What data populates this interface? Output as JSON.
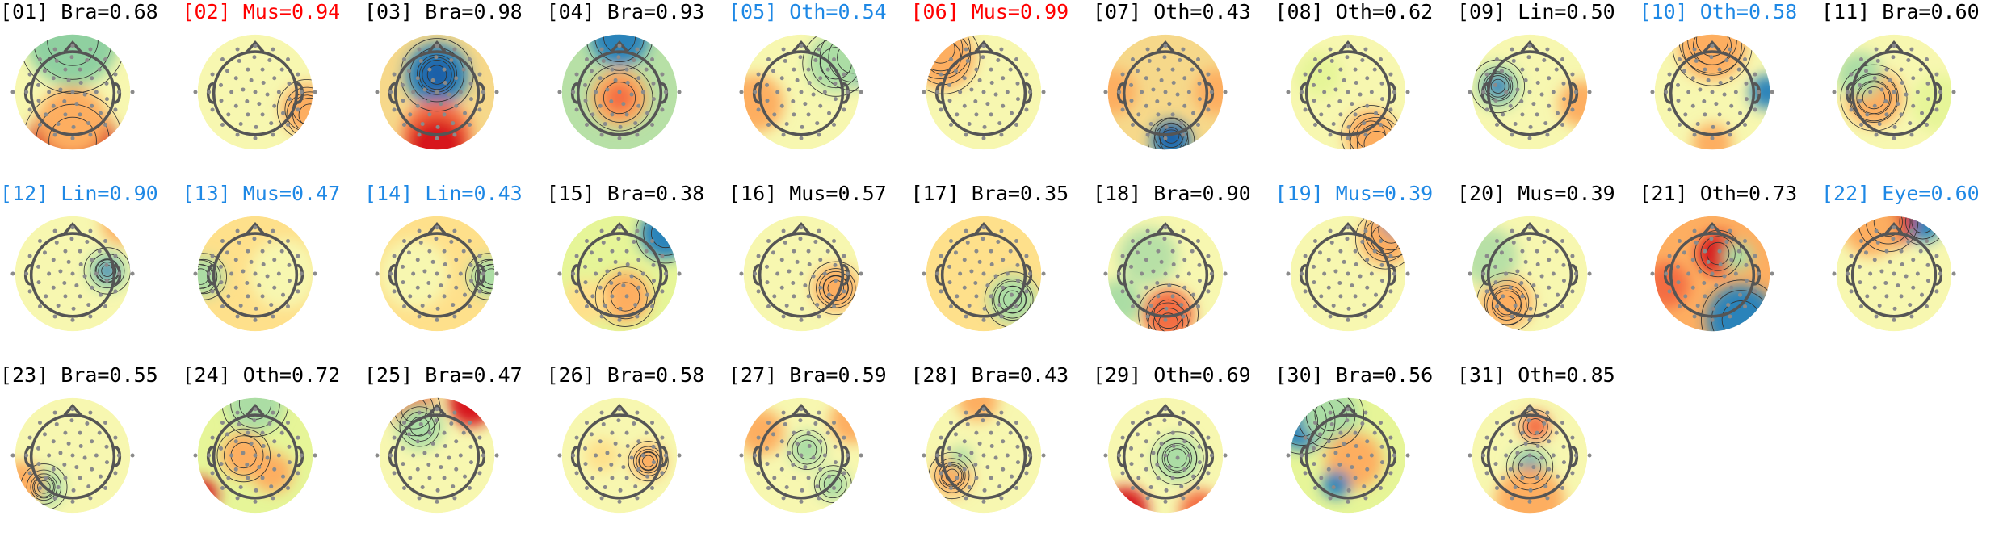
{
  "colors": {
    "label_default": "#000000",
    "label_red": "#ff0000",
    "label_blue": "#1e88e5",
    "head_outline": "#555555",
    "electrode": "#8a8a8a",
    "contour": "#333333"
  },
  "chart_data": {
    "type": "topomap-grid",
    "columns": 11,
    "components": [
      {
        "label": "[01] Bra=0.68",
        "index": 1,
        "class": "Bra",
        "score": 0.68,
        "color": "default"
      },
      {
        "label": "[02] Mus=0.94",
        "index": 2,
        "class": "Mus",
        "score": 0.94,
        "color": "red"
      },
      {
        "label": "[03] Bra=0.98",
        "index": 3,
        "class": "Bra",
        "score": 0.98,
        "color": "default"
      },
      {
        "label": "[04] Bra=0.93",
        "index": 4,
        "class": "Bra",
        "score": 0.93,
        "color": "default"
      },
      {
        "label": "[05] Oth=0.54",
        "index": 5,
        "class": "Oth",
        "score": 0.54,
        "color": "blue"
      },
      {
        "label": "[06] Mus=0.99",
        "index": 6,
        "class": "Mus",
        "score": 0.99,
        "color": "red"
      },
      {
        "label": "[07] Oth=0.43",
        "index": 7,
        "class": "Oth",
        "score": 0.43,
        "color": "default"
      },
      {
        "label": "[08] Oth=0.62",
        "index": 8,
        "class": "Oth",
        "score": 0.62,
        "color": "default"
      },
      {
        "label": "[09] Lin=0.50",
        "index": 9,
        "class": "Lin",
        "score": 0.5,
        "color": "default"
      },
      {
        "label": "[10] Oth=0.58",
        "index": 10,
        "class": "Oth",
        "score": 0.58,
        "color": "blue"
      },
      {
        "label": "[11] Bra=0.60",
        "index": 11,
        "class": "Bra",
        "score": 0.6,
        "color": "default"
      },
      {
        "label": "[12] Lin=0.90",
        "index": 12,
        "class": "Lin",
        "score": 0.9,
        "color": "blue"
      },
      {
        "label": "[13] Mus=0.47",
        "index": 13,
        "class": "Mus",
        "score": 0.47,
        "color": "blue"
      },
      {
        "label": "[14] Lin=0.43",
        "index": 14,
        "class": "Lin",
        "score": 0.43,
        "color": "blue"
      },
      {
        "label": "[15] Bra=0.38",
        "index": 15,
        "class": "Bra",
        "score": 0.38,
        "color": "default"
      },
      {
        "label": "[16] Mus=0.57",
        "index": 16,
        "class": "Mus",
        "score": 0.57,
        "color": "default"
      },
      {
        "label": "[17] Bra=0.35",
        "index": 17,
        "class": "Bra",
        "score": 0.35,
        "color": "default"
      },
      {
        "label": "[18] Bra=0.90",
        "index": 18,
        "class": "Bra",
        "score": 0.9,
        "color": "default"
      },
      {
        "label": "[19] Mus=0.39",
        "index": 19,
        "class": "Mus",
        "score": 0.39,
        "color": "blue"
      },
      {
        "label": "[20] Mus=0.39",
        "index": 20,
        "class": "Mus",
        "score": 0.39,
        "color": "default"
      },
      {
        "label": "[21] Oth=0.73",
        "index": 21,
        "class": "Oth",
        "score": 0.73,
        "color": "default"
      },
      {
        "label": "[22] Eye=0.60",
        "index": 22,
        "class": "Eye",
        "score": 0.6,
        "color": "blue"
      },
      {
        "label": "[23] Bra=0.55",
        "index": 23,
        "class": "Bra",
        "score": 0.55,
        "color": "default"
      },
      {
        "label": "[24] Oth=0.72",
        "index": 24,
        "class": "Oth",
        "score": 0.72,
        "color": "default"
      },
      {
        "label": "[25] Bra=0.47",
        "index": 25,
        "class": "Bra",
        "score": 0.47,
        "color": "default"
      },
      {
        "label": "[26] Bra=0.58",
        "index": 26,
        "class": "Bra",
        "score": 0.58,
        "color": "default"
      },
      {
        "label": "[27] Bra=0.59",
        "index": 27,
        "class": "Bra",
        "score": 0.59,
        "color": "default"
      },
      {
        "label": "[28] Bra=0.43",
        "index": 28,
        "class": "Bra",
        "score": 0.43,
        "color": "default"
      },
      {
        "label": "[29] Oth=0.69",
        "index": 29,
        "class": "Oth",
        "score": 0.69,
        "color": "default"
      },
      {
        "label": "[30] Bra=0.56",
        "index": 30,
        "class": "Bra",
        "score": 0.56,
        "color": "default"
      },
      {
        "label": "[31] Oth=0.85",
        "index": 31,
        "class": "Oth",
        "score": 0.85,
        "color": "default"
      }
    ]
  }
}
